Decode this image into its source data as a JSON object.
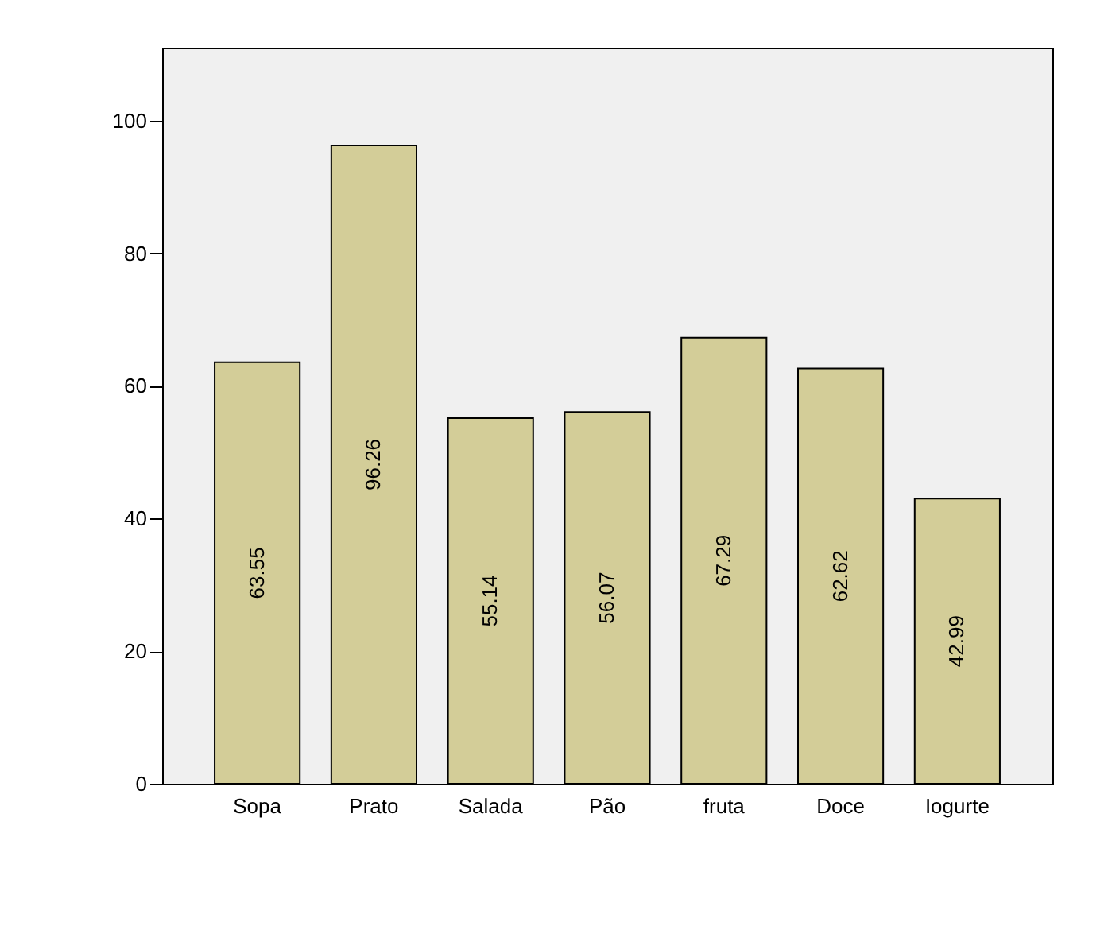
{
  "chart_data": {
    "type": "bar",
    "categories": [
      "Sopa",
      "Prato",
      "Salada",
      "Pão",
      "fruta",
      "Doce",
      "Iogurte"
    ],
    "values": [
      63.55,
      96.26,
      55.14,
      56.07,
      67.29,
      62.62,
      42.99
    ],
    "color": "#d3cd98",
    "ylim": [
      0,
      111
    ],
    "yticks": [
      0,
      20,
      40,
      60,
      80,
      100
    ],
    "data_labels": true,
    "grid": false
  }
}
